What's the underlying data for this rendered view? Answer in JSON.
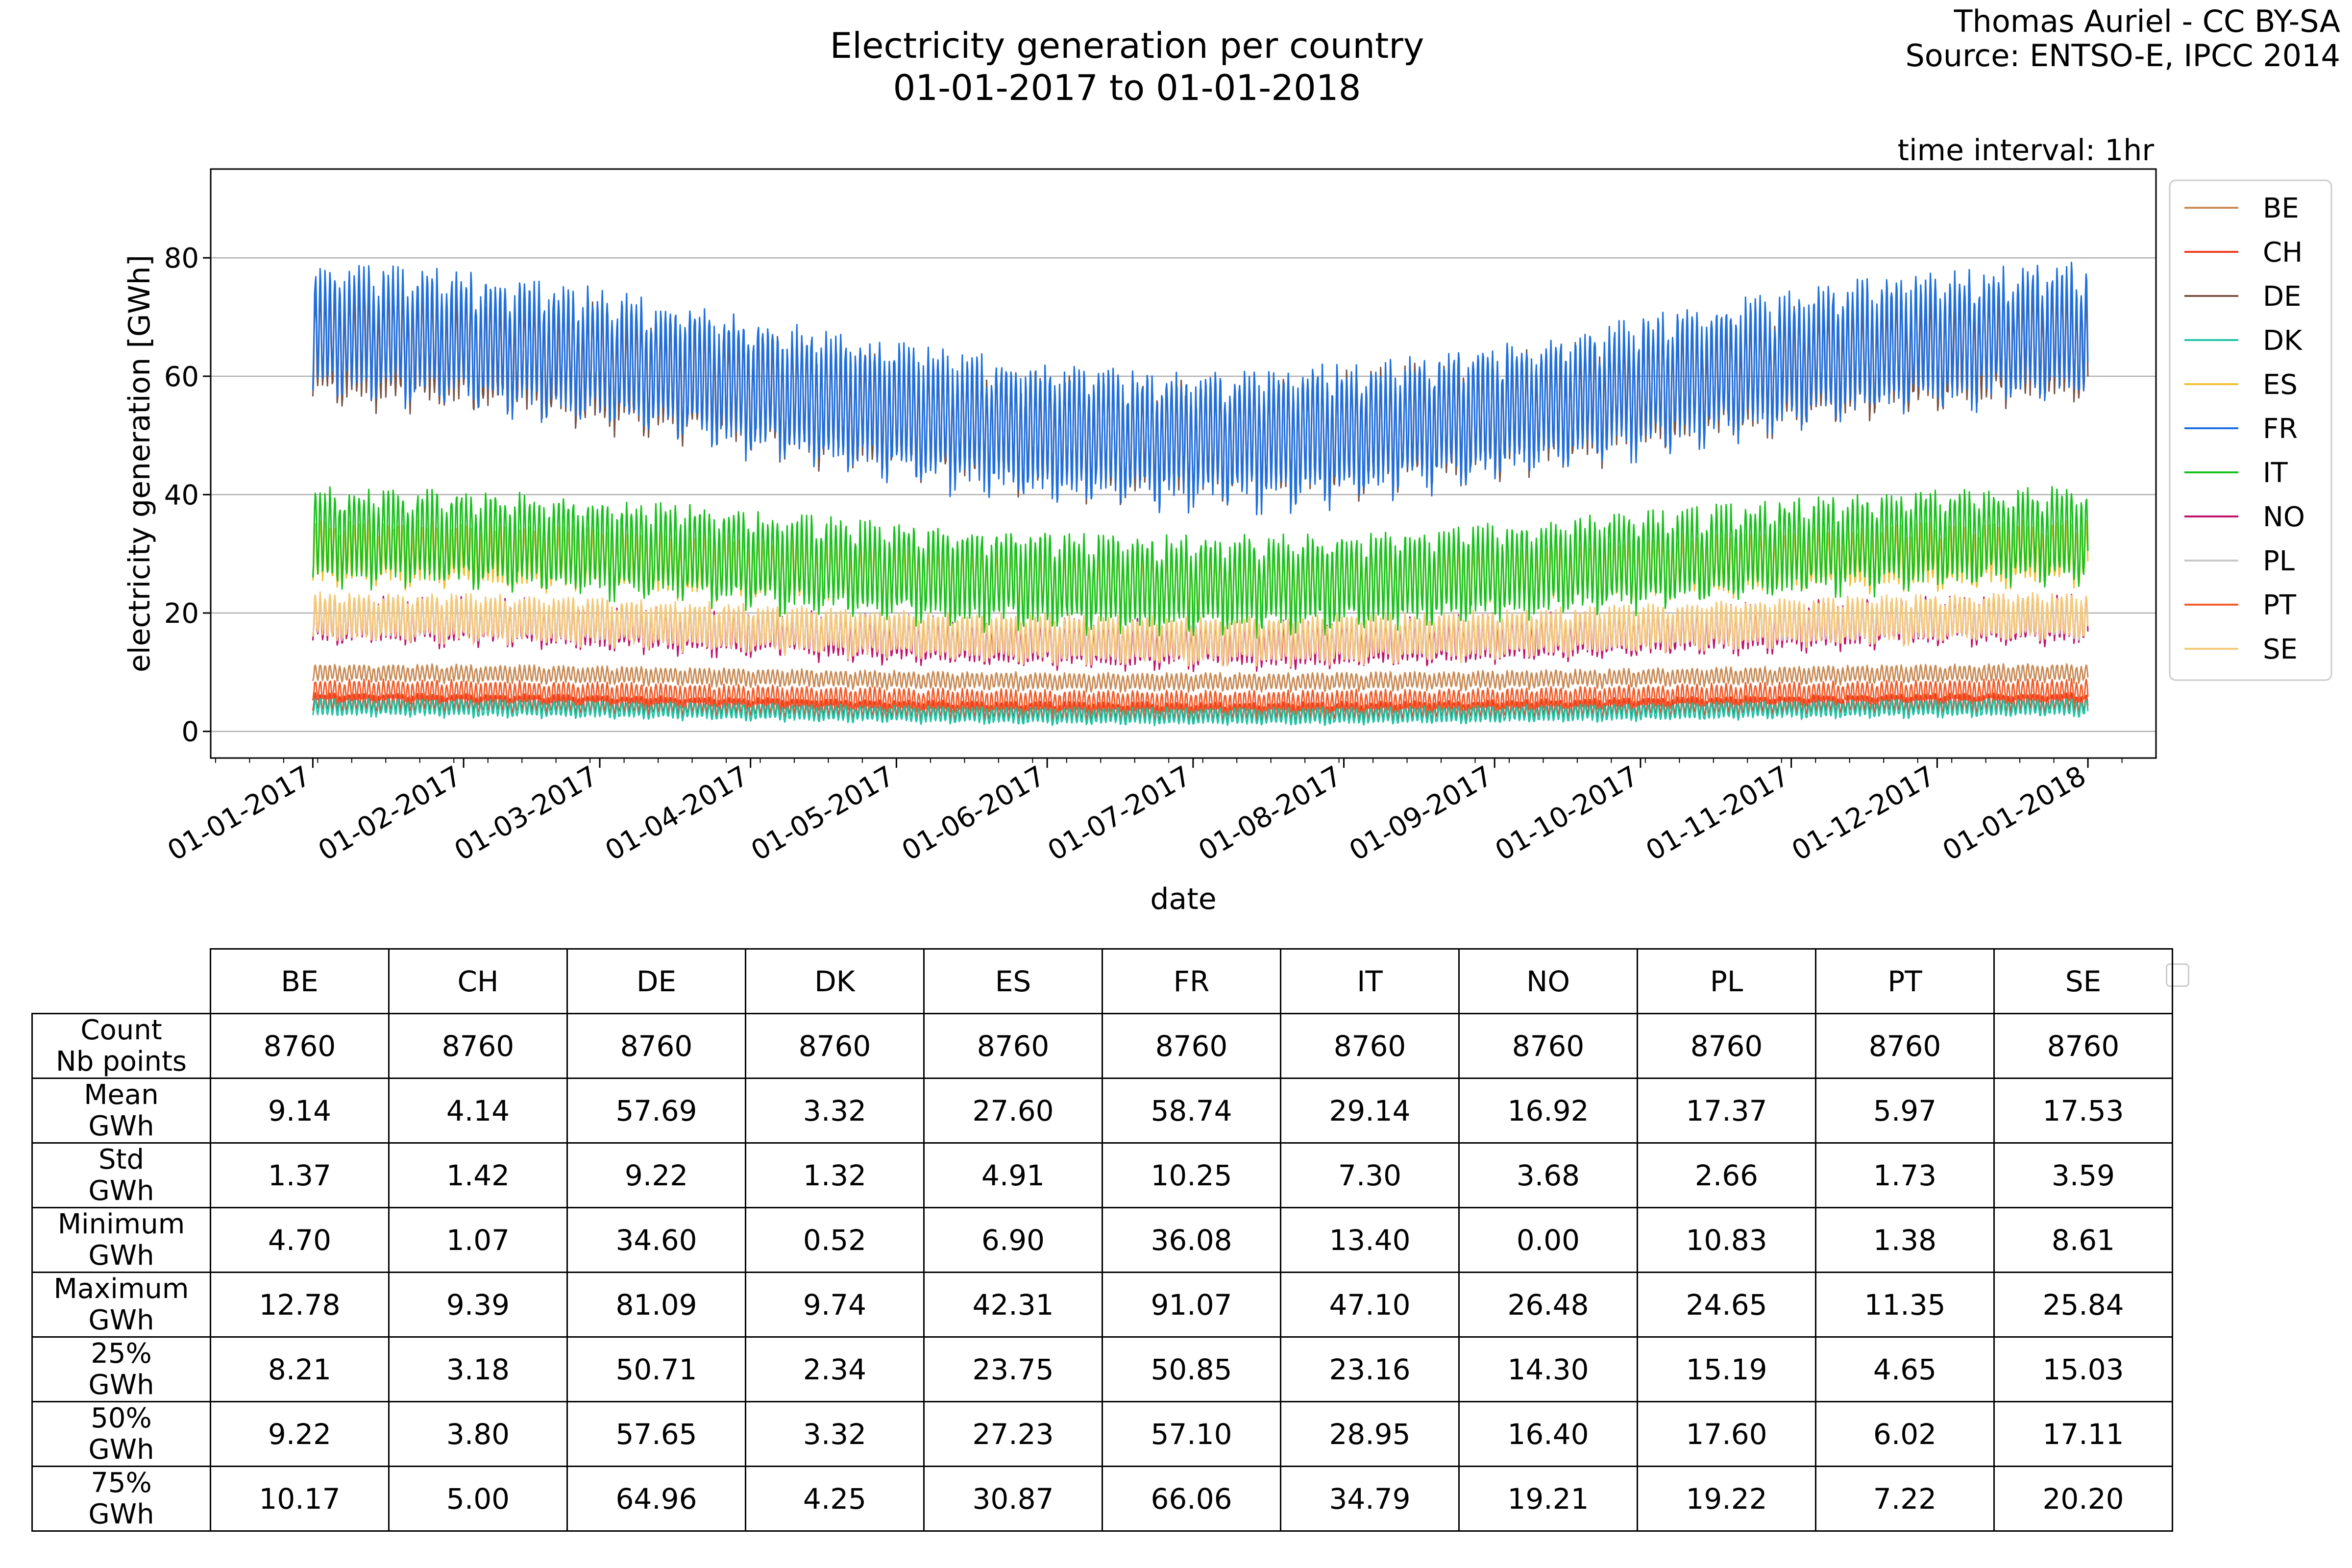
{
  "header": {
    "title_line1": "Electricity generation per country",
    "title_line2": "01-01-2017 to 01-01-2018",
    "credit_line1": "Thomas Auriel - CC BY-SA",
    "credit_line2": "Source: ENTSO-E, IPCC 2014",
    "interval_note": "time interval: 1hr"
  },
  "chart_data": {
    "type": "line",
    "xlabel": "date",
    "ylabel": "electricity generation [GWh]",
    "x_range": [
      "01-01-2017",
      "01-01-2018"
    ],
    "xlim": [
      "2016-12-11",
      "2018-01-15"
    ],
    "ylim": [
      -4.5,
      95
    ],
    "y_ticks": [
      0,
      20,
      40,
      60,
      80
    ],
    "y_tick_labels": [
      "0",
      "20",
      "40",
      "60",
      "80"
    ],
    "x_tick_labels": [
      "01-01-2017",
      "01-02-2017",
      "01-03-2017",
      "01-04-2017",
      "01-05-2017",
      "01-06-2017",
      "01-07-2017",
      "01-08-2017",
      "01-09-2017",
      "01-10-2017",
      "01-11-2017",
      "01-12-2017",
      "01-01-2018"
    ],
    "grid": "horizontal",
    "legend_position": "outside-right-top",
    "series": [
      {
        "name": "BE",
        "color": "#c98b56",
        "mean": 9.14,
        "std": 1.37,
        "min": 4.7,
        "max": 12.78
      },
      {
        "name": "CH",
        "color": "#ef3b1f",
        "mean": 4.14,
        "std": 1.42,
        "min": 1.07,
        "max": 9.39
      },
      {
        "name": "DE",
        "color": "#7b5345",
        "mean": 57.69,
        "std": 9.22,
        "min": 34.6,
        "max": 81.09
      },
      {
        "name": "DK",
        "color": "#20c4a6",
        "mean": 3.32,
        "std": 1.32,
        "min": 0.52,
        "max": 9.74
      },
      {
        "name": "ES",
        "color": "#f1c232",
        "mean": 27.6,
        "std": 4.91,
        "min": 6.9,
        "max": 42.31
      },
      {
        "name": "FR",
        "color": "#1f6fe0",
        "mean": 58.74,
        "std": 10.25,
        "min": 36.08,
        "max": 91.07
      },
      {
        "name": "IT",
        "color": "#17c21c",
        "mean": 29.14,
        "std": 7.3,
        "min": 13.4,
        "max": 47.1
      },
      {
        "name": "NO",
        "color": "#c2136b",
        "mean": 16.92,
        "std": 3.68,
        "min": 0.0,
        "max": 26.48
      },
      {
        "name": "PL",
        "color": "#c8c8c8",
        "mean": 17.37,
        "std": 2.66,
        "min": 10.83,
        "max": 24.65
      },
      {
        "name": "PT",
        "color": "#f25c2a",
        "mean": 5.97,
        "std": 1.73,
        "min": 1.38,
        "max": 11.35
      },
      {
        "name": "SE",
        "color": "#f5c97a",
        "mean": 17.53,
        "std": 3.59,
        "min": 8.61,
        "max": 25.84
      }
    ]
  },
  "stats_table": {
    "columns": [
      "BE",
      "CH",
      "DE",
      "DK",
      "ES",
      "FR",
      "IT",
      "NO",
      "PL",
      "PT",
      "SE"
    ],
    "rows": [
      {
        "label1": "Count",
        "label2": "Nb points",
        "values": [
          "8760",
          "8760",
          "8760",
          "8760",
          "8760",
          "8760",
          "8760",
          "8760",
          "8760",
          "8760",
          "8760"
        ]
      },
      {
        "label1": "Mean",
        "label2": "GWh",
        "values": [
          "9.14",
          "4.14",
          "57.69",
          "3.32",
          "27.60",
          "58.74",
          "29.14",
          "16.92",
          "17.37",
          "5.97",
          "17.53"
        ]
      },
      {
        "label1": "Std",
        "label2": "GWh",
        "values": [
          "1.37",
          "1.42",
          "9.22",
          "1.32",
          "4.91",
          "10.25",
          "7.30",
          "3.68",
          "2.66",
          "1.73",
          "3.59"
        ]
      },
      {
        "label1": "Minimum",
        "label2": "GWh",
        "values": [
          "4.70",
          "1.07",
          "34.60",
          "0.52",
          "6.90",
          "36.08",
          "13.40",
          "0.00",
          "10.83",
          "1.38",
          "8.61"
        ]
      },
      {
        "label1": "Maximum",
        "label2": "GWh",
        "values": [
          "12.78",
          "9.39",
          "81.09",
          "9.74",
          "42.31",
          "91.07",
          "47.10",
          "26.48",
          "24.65",
          "11.35",
          "25.84"
        ]
      },
      {
        "label1": "25%",
        "label2": "GWh",
        "values": [
          "8.21",
          "3.18",
          "50.71",
          "2.34",
          "23.75",
          "50.85",
          "23.16",
          "14.30",
          "15.19",
          "4.65",
          "15.03"
        ]
      },
      {
        "label1": "50%",
        "label2": "GWh",
        "values": [
          "9.22",
          "3.80",
          "57.65",
          "3.32",
          "27.23",
          "57.10",
          "28.95",
          "16.40",
          "17.60",
          "6.02",
          "17.11"
        ]
      },
      {
        "label1": "75%",
        "label2": "GWh",
        "values": [
          "10.17",
          "5.00",
          "64.96",
          "4.25",
          "30.87",
          "66.06",
          "34.79",
          "19.21",
          "19.22",
          "7.22",
          "20.20"
        ]
      }
    ]
  }
}
